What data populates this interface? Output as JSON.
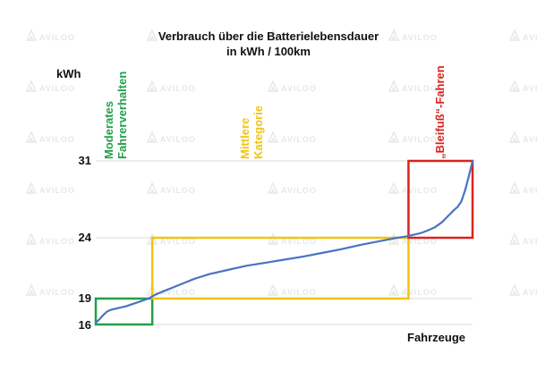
{
  "chart_data": {
    "type": "line",
    "title_lines": [
      "Verbrauch über die Batterielebensdauer",
      "in kWh / 100km"
    ],
    "ylabel": "kWh",
    "xlabel": "Fahrzeuge",
    "yticks": [
      16,
      19,
      24,
      31
    ],
    "ylim": [
      16,
      31
    ],
    "xlim": [
      0,
      100
    ],
    "grid": "horizontal",
    "series": [
      {
        "color": "#4a73c4",
        "x": [
          0,
          1,
          2,
          3,
          4,
          6,
          8,
          10,
          12,
          14,
          16,
          18,
          20,
          22,
          24,
          26,
          28,
          30,
          35,
          40,
          45,
          50,
          55,
          60,
          65,
          70,
          75,
          80,
          82,
          84,
          86,
          88,
          90,
          92,
          93,
          94,
          95,
          96,
          97,
          98,
          99,
          100
        ],
        "y": [
          16.2,
          16.6,
          17.1,
          17.5,
          17.7,
          17.9,
          18.1,
          18.4,
          18.7,
          19.0,
          19.35,
          19.6,
          19.85,
          20.1,
          20.35,
          20.6,
          20.8,
          21.0,
          21.35,
          21.7,
          21.95,
          22.2,
          22.45,
          22.75,
          23.05,
          23.4,
          23.7,
          24.0,
          24.1,
          24.25,
          24.4,
          24.65,
          24.95,
          25.45,
          25.8,
          26.15,
          26.5,
          26.8,
          27.3,
          28.3,
          29.6,
          31.0
        ]
      }
    ],
    "regions": [
      {
        "label_lines": [
          "Moderates",
          "Fahrerverhalten"
        ],
        "color": "#22a04b",
        "x_range": [
          0,
          15
        ],
        "y_range": [
          16,
          19
        ]
      },
      {
        "label_lines": [
          "Mittlere",
          "Kategorie"
        ],
        "color": "#f2c40f",
        "x_range": [
          15,
          83
        ],
        "y_range": [
          19,
          24
        ]
      },
      {
        "label_lines": [
          "„Bleifuß“-Fahren"
        ],
        "color": "#d9231d",
        "x_range": [
          83,
          100
        ],
        "y_range": [
          24,
          31
        ]
      }
    ]
  },
  "watermark": "AVILOO"
}
